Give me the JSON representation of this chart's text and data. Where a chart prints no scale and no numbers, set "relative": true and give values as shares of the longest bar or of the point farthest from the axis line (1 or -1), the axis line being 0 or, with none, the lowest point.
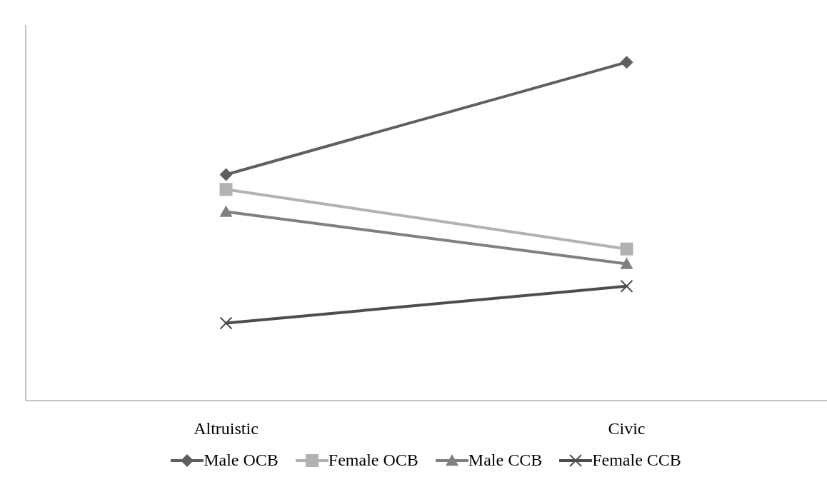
{
  "chart_data": {
    "type": "line",
    "relative": true,
    "categories": [
      "Altruistic",
      "Civic"
    ],
    "series": [
      {
        "name": "Male OCB",
        "color": "#5f5f5f",
        "marker": "diamond",
        "values": [
          0.668,
          1
        ]
      },
      {
        "name": "Female OCB",
        "color": "#b2b2b2",
        "marker": "square",
        "values": [
          0.624,
          0.448
        ]
      },
      {
        "name": "Male CCB",
        "color": "#808080",
        "marker": "triangle",
        "values": [
          0.558,
          0.404
        ]
      },
      {
        "name": "Female CCB",
        "color": "#4d4d4d",
        "marker": "cross",
        "values": [
          0.229,
          0.338
        ]
      }
    ],
    "grid": false,
    "legend": "bottom"
  }
}
